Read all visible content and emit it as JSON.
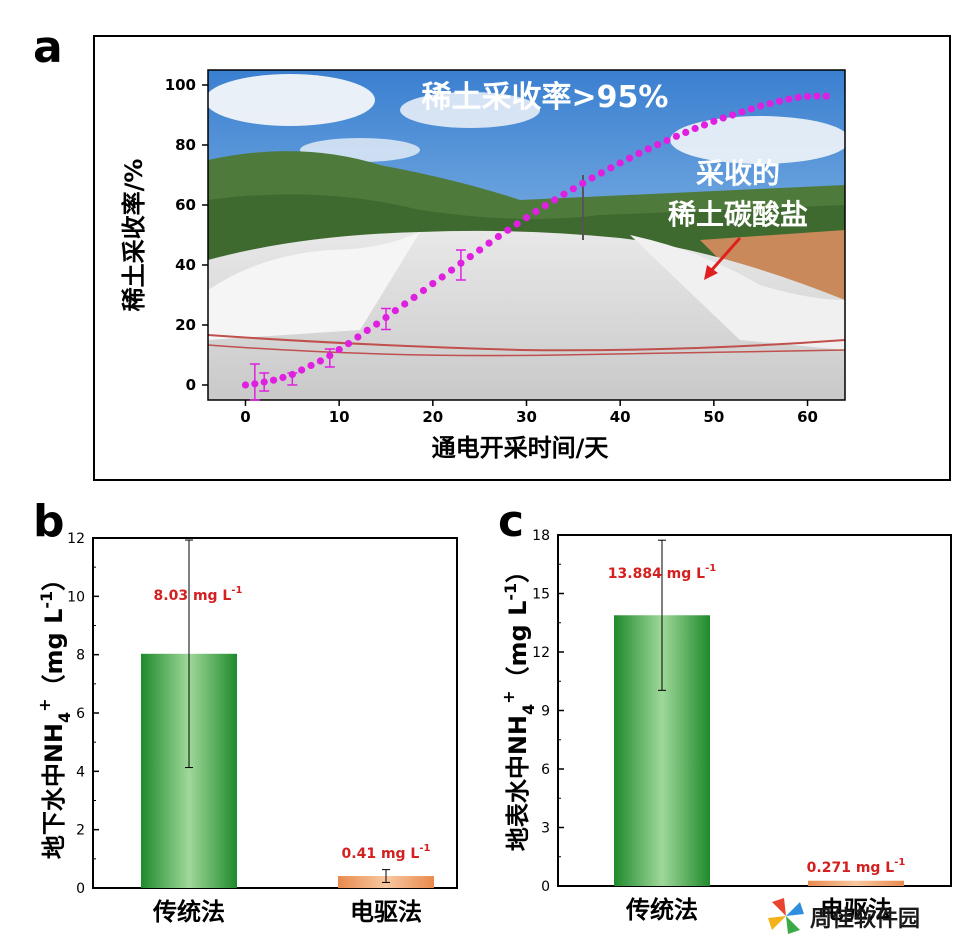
{
  "panels": {
    "a": {
      "letter": "a"
    },
    "b": {
      "letter": "b"
    },
    "c": {
      "letter": "c"
    }
  },
  "chart_data": [
    {
      "id": "a",
      "type": "scatter",
      "title": "",
      "xlabel": "通电开采时间/天",
      "ylabel": "稀土采收率/%",
      "xlim": [
        -4,
        64
      ],
      "ylim": [
        -5,
        105
      ],
      "xticks": [
        0,
        10,
        20,
        30,
        40,
        50,
        60
      ],
      "yticks": [
        0,
        20,
        40,
        60,
        80,
        100
      ],
      "x": [
        0,
        1,
        2,
        3,
        4,
        5,
        6,
        7,
        8,
        9,
        10,
        11,
        12,
        13,
        14,
        15,
        16,
        17,
        18,
        19,
        20,
        21,
        22,
        23,
        24,
        25,
        26,
        27,
        28,
        29,
        30,
        31,
        32,
        33,
        34,
        35,
        36,
        37,
        38,
        39,
        40,
        41,
        42,
        43,
        44,
        45,
        46,
        47,
        48,
        49,
        50,
        51,
        52,
        53,
        54,
        55,
        56,
        57,
        58,
        59,
        60,
        61,
        62
      ],
      "y": [
        0,
        0.4,
        1,
        1.6,
        2.5,
        3.5,
        5,
        6.5,
        8,
        9.8,
        11.8,
        13.8,
        16,
        18.2,
        20.3,
        22.5,
        24.8,
        27,
        29.2,
        31.5,
        33.8,
        36,
        38.3,
        40.6,
        42.8,
        45,
        47.3,
        49.5,
        51.6,
        53.7,
        55.8,
        57.8,
        59.8,
        61.7,
        63.6,
        65.4,
        67.2,
        69,
        70.7,
        72.4,
        74,
        75.6,
        77.2,
        78.7,
        80.1,
        81.5,
        82.9,
        84.2,
        85.5,
        86.7,
        87.9,
        89,
        90,
        91,
        92,
        93,
        93.8,
        94.6,
        95.3,
        95.9,
        96.2,
        96.3,
        96.3
      ],
      "error_x": [
        1,
        2,
        5,
        9,
        15,
        23
      ],
      "error_y": [
        1,
        1,
        2,
        9,
        22,
        40
      ],
      "error_half": [
        6,
        3,
        2,
        3,
        3.5,
        5
      ],
      "marker_color": "#e020e0",
      "annotations": [
        {
          "text": "稀土采收率>95%"
        },
        {
          "text_line1": "采收的",
          "text_line2": "稀土碳酸盐"
        }
      ]
    },
    {
      "id": "b",
      "type": "bar",
      "title": "",
      "categories": [
        "传统法",
        "电驱法"
      ],
      "values": [
        8.03,
        0.41
      ],
      "errors": [
        3.9,
        0.22
      ],
      "data_labels": [
        "8.03 mg L",
        "0.41 mg L"
      ],
      "label_sup": "-1",
      "ylabel_main": "地下水中NH",
      "ylabel_sub": "4",
      "ylabel_sup": "+",
      "ylabel_unit_main": "（mg L",
      "ylabel_unit_sup": "-1",
      "ylabel_unit_end": "）",
      "ylim": [
        0,
        12
      ],
      "yticks": [
        "0",
        "2",
        "4",
        "6",
        "8",
        "10",
        "12"
      ],
      "colors": [
        "#2e9e3a",
        "#f0a066"
      ]
    },
    {
      "id": "c",
      "type": "bar",
      "title": "",
      "categories": [
        "传统法",
        "电驱法"
      ],
      "values": [
        13.884,
        0.271
      ],
      "errors": [
        3.85,
        0
      ],
      "data_labels": [
        "13.884 mg L",
        "0.271 mg L"
      ],
      "label_sup": "-1",
      "ylabel_main": "地表水中NH",
      "ylabel_sub": "4",
      "ylabel_sup": "+",
      "ylabel_unit_main": "（mg L",
      "ylabel_unit_sup": "-1",
      "ylabel_unit_end": "）",
      "ylim": [
        0,
        18
      ],
      "yticks": [
        "0",
        "3",
        "6",
        "9",
        "12",
        "15",
        "18"
      ],
      "colors": [
        "#2e9e3a",
        "#f0a066"
      ]
    }
  ],
  "watermark": {
    "text": "周佳软件园",
    "icon": "pinwheel-logo-icon"
  }
}
